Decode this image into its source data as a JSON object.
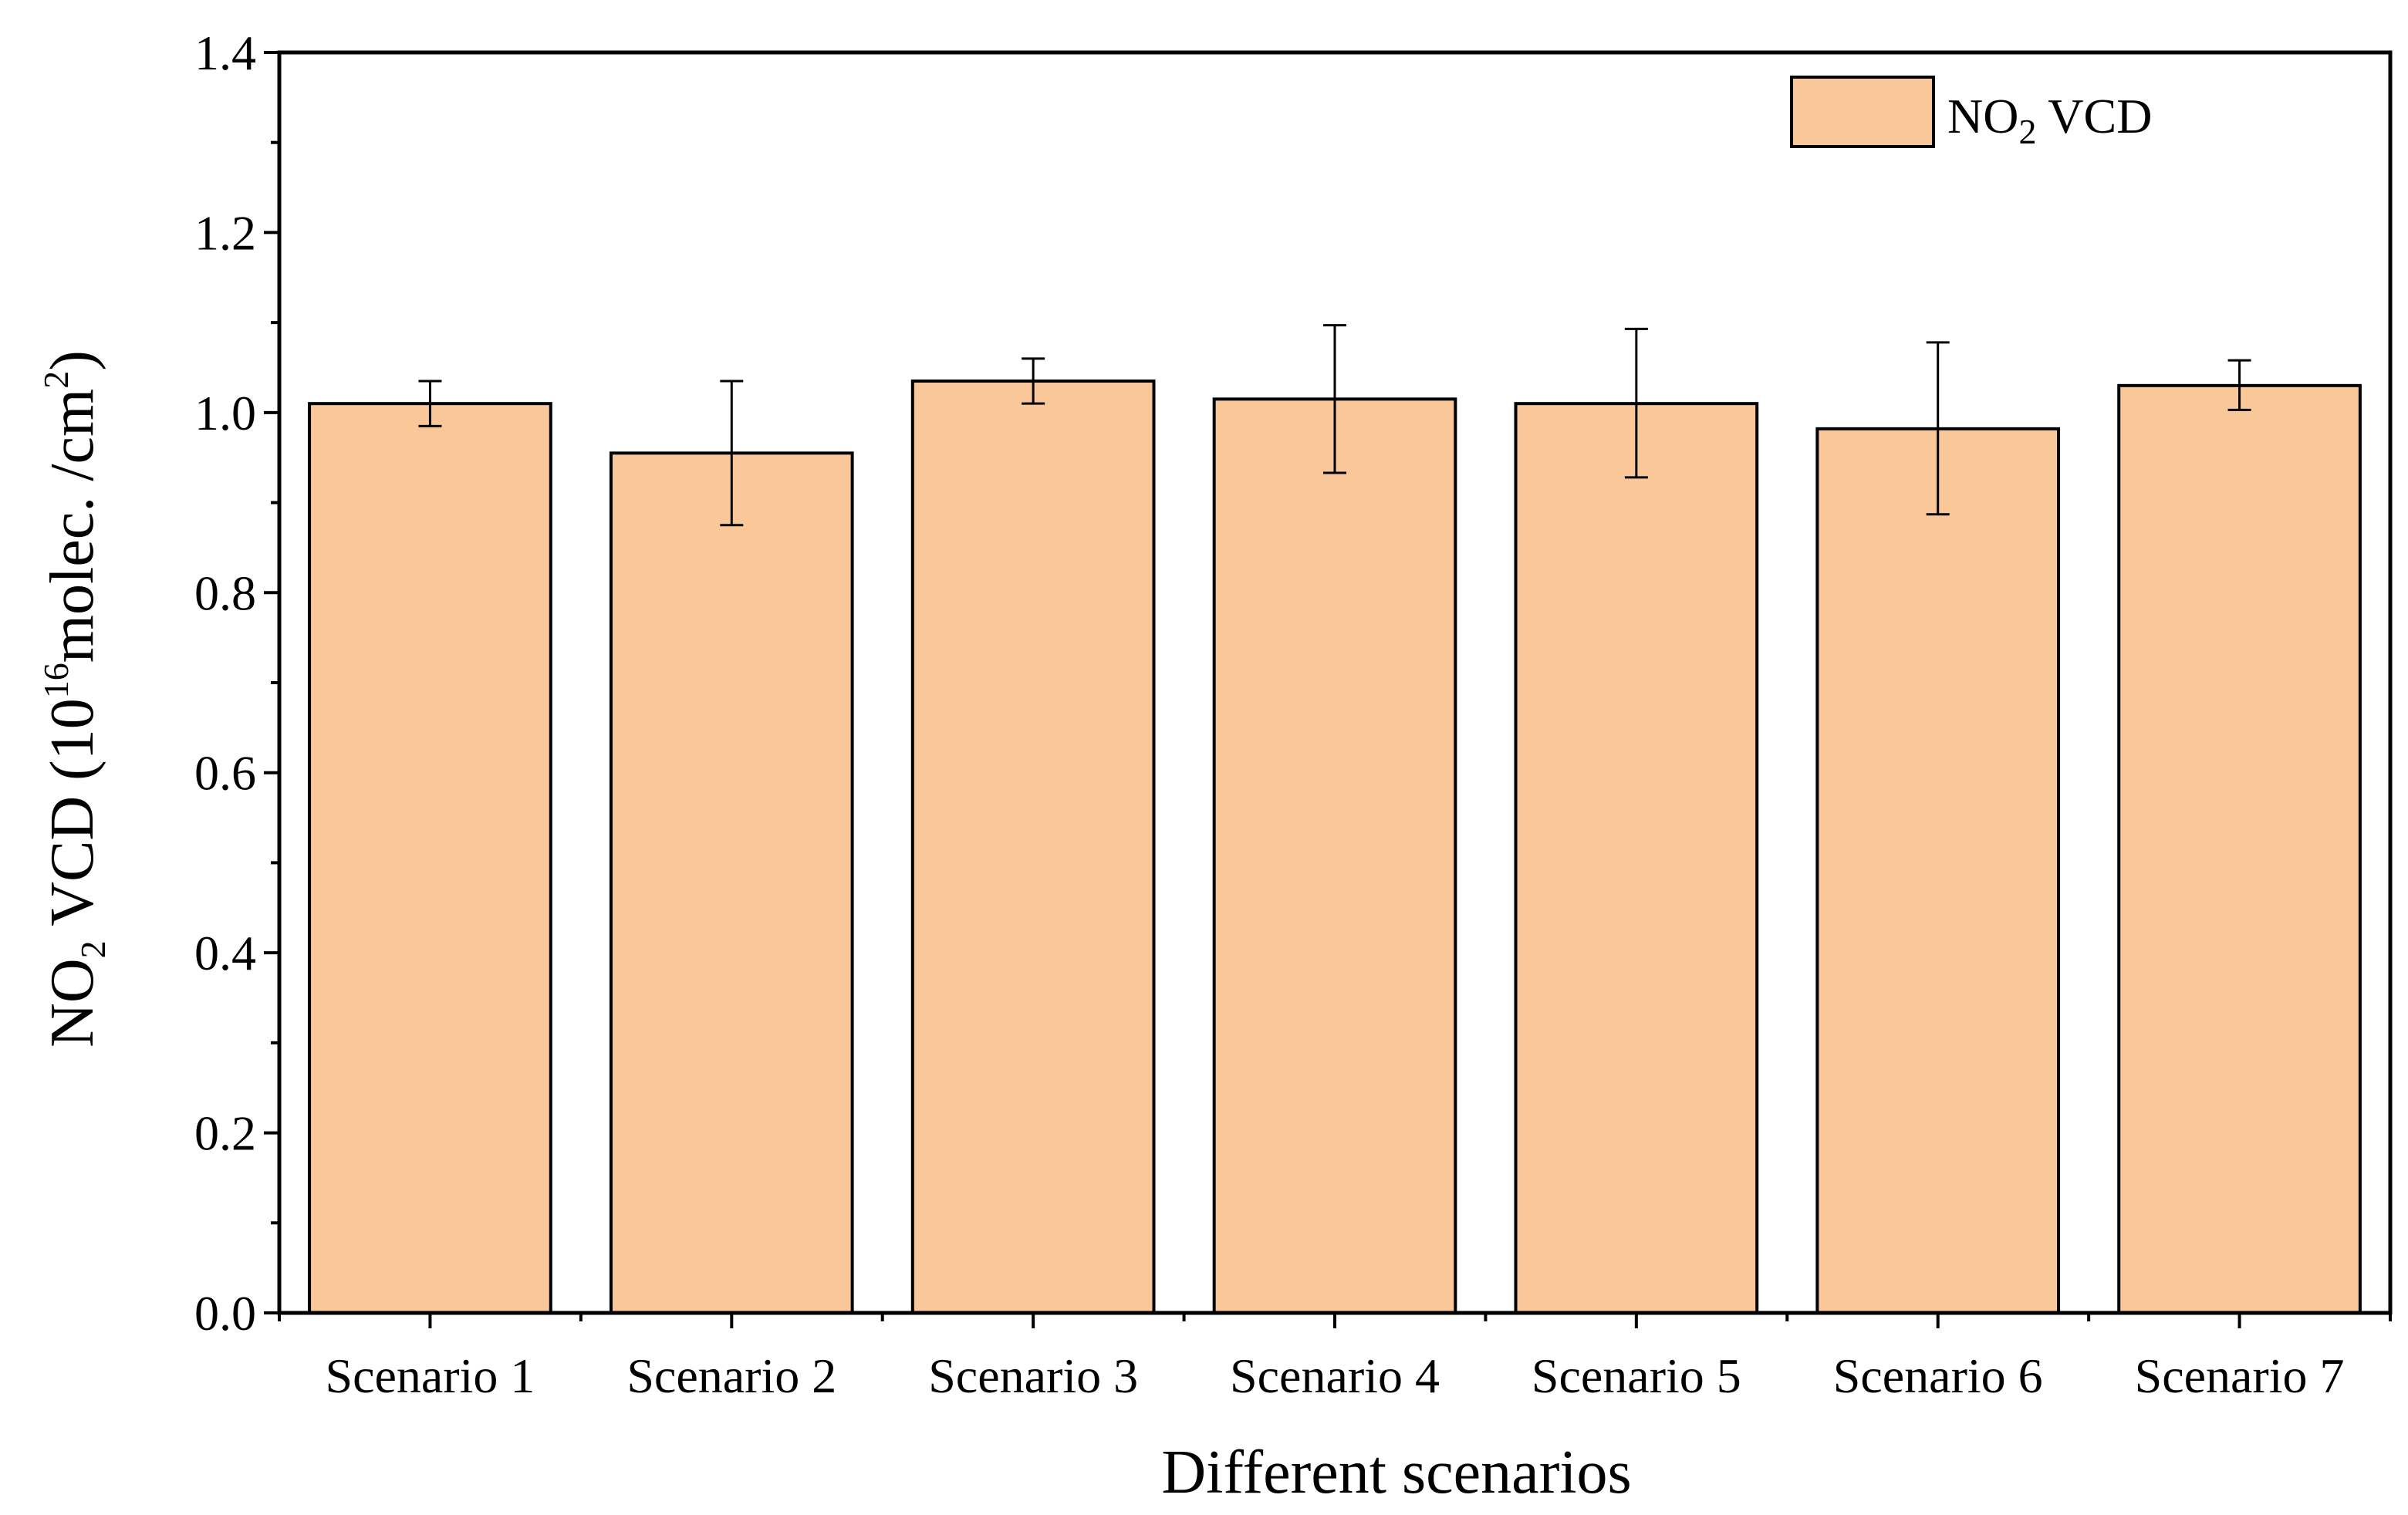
{
  "chart_data": {
    "type": "bar",
    "categories": [
      "Scenario 1",
      "Scenario 2",
      "Scenario 3",
      "Scenario 4",
      "Scenario 5",
      "Scenario 6",
      "Scenario 7"
    ],
    "series": [
      {
        "name": "NO2 VCD",
        "values": [
          1.01,
          0.955,
          1.035,
          1.015,
          1.01,
          0.982,
          1.03
        ],
        "error_low": [
          0.985,
          0.875,
          1.01,
          0.933,
          0.928,
          0.887,
          1.003
        ],
        "error_high": [
          1.035,
          1.035,
          1.06,
          1.097,
          1.093,
          1.078,
          1.058
        ]
      }
    ],
    "bar_color": "#FAC898",
    "ylim": [
      0,
      1.4
    ],
    "yticks": [
      "0.0",
      "0.2",
      "0.4",
      "0.6",
      "0.8",
      "1.0",
      "1.2",
      "1.4"
    ],
    "xlabel": "Different scenarios",
    "ylabel": {
      "prefix": "NO",
      "sub": "2",
      "middle": " VCD (10",
      "sup1": "16",
      "rest": "molec. /cm",
      "sup2": "2",
      "end": ")"
    },
    "legend": {
      "position": "top-right",
      "label_main": "NO",
      "label_sub": "2",
      "label_rest": " VCD"
    },
    "grid": false
  }
}
